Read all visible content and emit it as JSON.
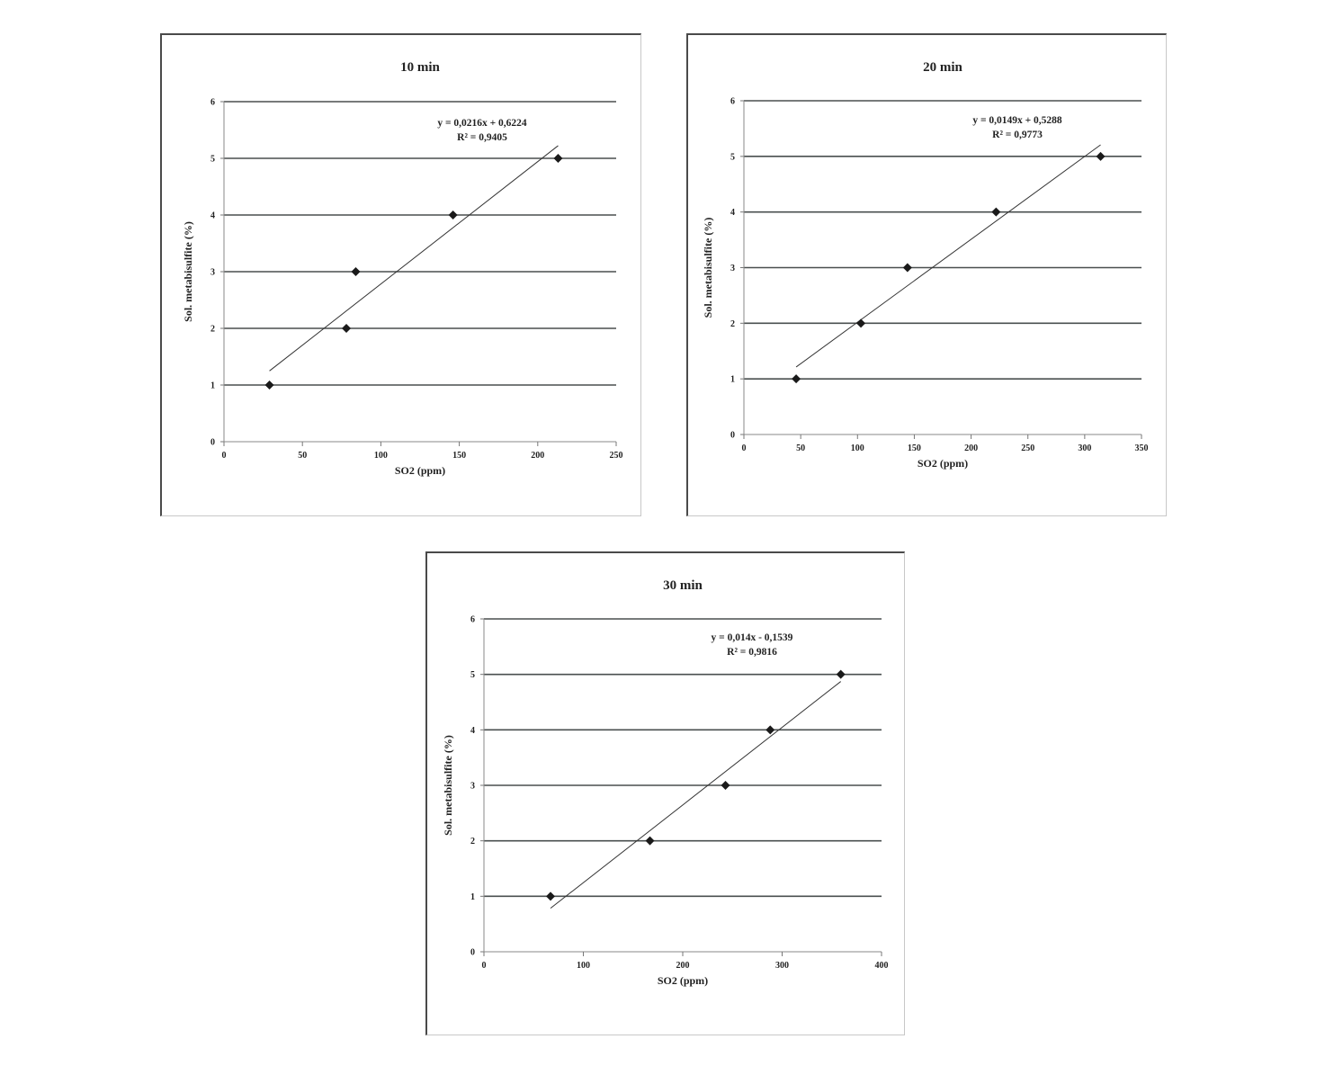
{
  "chart_data": [
    {
      "type": "scatter",
      "title": "10 min",
      "xlabel": "SO2 (ppm)",
      "ylabel": "Sol. metabisulfite (%)",
      "xlim": [
        0,
        250
      ],
      "ylim": [
        0,
        6
      ],
      "x_ticks": [
        "0",
        "50",
        "100",
        "150",
        "200",
        "250"
      ],
      "y_ticks": [
        "0",
        "1",
        "2",
        "3",
        "4",
        "5",
        "6"
      ],
      "grid": true,
      "series": [
        {
          "x": [
            29,
            78,
            84,
            146,
            213
          ],
          "y": [
            1,
            2,
            3,
            4,
            5
          ]
        }
      ],
      "trendline": {
        "slope": 0.0216,
        "intercept": 0.6224,
        "x_range": [
          29,
          213
        ]
      },
      "equation": "y = 0,0216x + 0,6224",
      "r_squared": "R² = 0,9405"
    },
    {
      "type": "scatter",
      "title": "20 min",
      "xlabel": "SO2 (ppm)",
      "ylabel": "Sol. metabisulfite (%)",
      "xlim": [
        0,
        350
      ],
      "ylim": [
        0,
        6
      ],
      "x_ticks": [
        "0",
        "50",
        "100",
        "150",
        "200",
        "250",
        "300",
        "350"
      ],
      "y_ticks": [
        "0",
        "1",
        "2",
        "3",
        "4",
        "5",
        "6"
      ],
      "grid": true,
      "series": [
        {
          "x": [
            46,
            103,
            144,
            222,
            314
          ],
          "y": [
            1,
            2,
            3,
            4,
            5
          ]
        }
      ],
      "trendline": {
        "slope": 0.0149,
        "intercept": 0.5288,
        "x_range": [
          46,
          314
        ]
      },
      "equation": "y = 0,0149x + 0,5288",
      "r_squared": "R² = 0,9773"
    },
    {
      "type": "scatter",
      "title": "30 min",
      "xlabel": "SO2 (ppm)",
      "ylabel": "Sol. metabisulfite (%)",
      "xlim": [
        0,
        400
      ],
      "ylim": [
        0,
        6
      ],
      "x_ticks": [
        "0",
        "100",
        "200",
        "300",
        "400"
      ],
      "y_ticks": [
        "0",
        "1",
        "2",
        "3",
        "4",
        "5",
        "6"
      ],
      "grid": true,
      "series": [
        {
          "x": [
            67,
            167,
            243,
            288,
            359
          ],
          "y": [
            1,
            2,
            3,
            4,
            5
          ]
        }
      ],
      "trendline": {
        "slope": 0.014,
        "intercept": -0.1539,
        "x_range": [
          67,
          359
        ]
      },
      "equation": "y = 0,014x - 0,1539",
      "r_squared": "R² = 0,9816"
    }
  ]
}
